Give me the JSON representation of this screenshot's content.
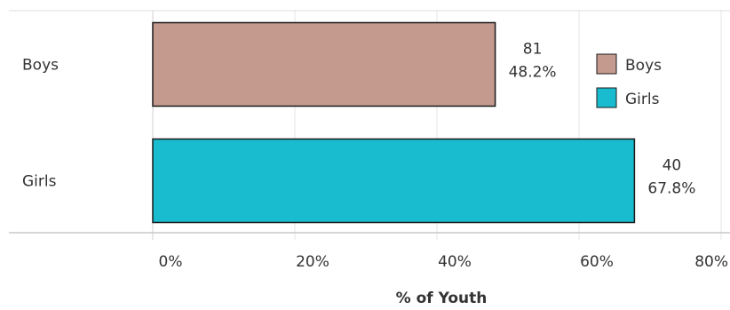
{
  "chart_data": {
    "type": "bar",
    "orientation": "horizontal",
    "categories": [
      "Boys",
      "Girls"
    ],
    "series": [
      {
        "values": [
          48.2,
          67.8
        ],
        "counts": [
          "81",
          "40"
        ],
        "percent_labels": [
          "48.2%",
          "67.8%"
        ]
      }
    ],
    "colors": [
      "#c49a8f",
      "#19bccf"
    ],
    "xlabel": "% of Youth",
    "xlim": [
      0,
      80
    ],
    "x_ticks": [
      0,
      20,
      40,
      60,
      80
    ],
    "x_tick_labels": [
      "0%",
      "20%",
      "40%",
      "60%",
      "80%"
    ],
    "legend": {
      "position": "right",
      "items": [
        {
          "label": "Boys",
          "color": "#c49a8f"
        },
        {
          "label": "Girls",
          "color": "#19bccf"
        }
      ]
    },
    "grid": "vertical",
    "grid_color": "#e6e6e6",
    "axis_color": "#c8c8c8",
    "bar_outline": "#1a1a1a"
  }
}
